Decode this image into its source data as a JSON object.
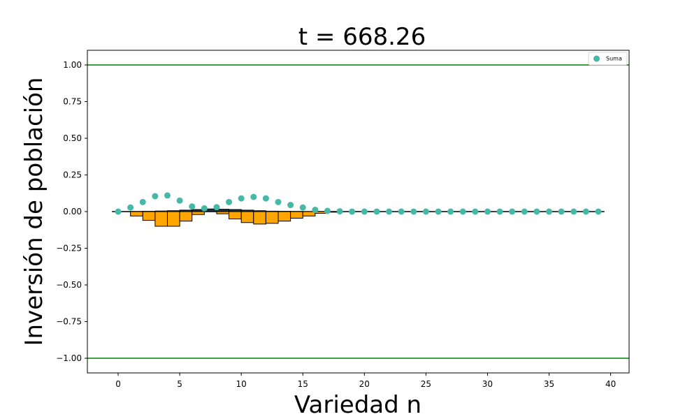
{
  "chart_data": {
    "type": "bar",
    "title": "t = 668.26",
    "xlabel": "Variedad n",
    "ylabel": "Inversión de población",
    "xlim": [
      -2.5,
      41.5
    ],
    "ylim": [
      -1.1,
      1.1
    ],
    "xticks": [
      0,
      5,
      10,
      15,
      20,
      25,
      30,
      35,
      40
    ],
    "xtick_labels": [
      "0",
      "5",
      "10",
      "15",
      "20",
      "25",
      "30",
      "35",
      "40"
    ],
    "yticks": [
      1.0,
      0.75,
      0.5,
      0.25,
      0.0,
      -0.25,
      -0.5,
      -0.75,
      -1.0
    ],
    "ytick_labels": [
      "1.00",
      "0.75",
      "0.50",
      "0.25",
      "0.00",
      "−0.25",
      "−0.50",
      "−0.75",
      "−1.00"
    ],
    "hlines": [
      {
        "y": 1.0,
        "color": "#008000"
      },
      {
        "y": -1.0,
        "color": "#008000"
      },
      {
        "y": 0.0,
        "color": "#000000",
        "xrange": [
          -0.5,
          39.5
        ]
      }
    ],
    "series": [
      {
        "kind": "bar",
        "color": "#1f2d3d",
        "x": [
          0,
          1,
          2,
          3,
          4,
          5,
          6,
          7,
          8,
          9,
          10,
          11,
          12,
          13,
          14,
          15,
          16,
          17,
          18
        ],
        "values": [
          0.0,
          0.001,
          0.002,
          0.004,
          0.006,
          0.01,
          0.014,
          0.018,
          0.016,
          0.014,
          0.01,
          0.006,
          0.003,
          0.002,
          0.001,
          0.0,
          0.0,
          0.0,
          0.0
        ]
      },
      {
        "kind": "bar",
        "color": "#ffa500",
        "x": [
          0,
          1,
          2,
          3,
          4,
          5,
          6,
          7,
          8,
          9,
          10,
          11,
          12,
          13,
          14,
          15,
          16,
          17,
          18
        ],
        "values": [
          0.0,
          -0.03,
          -0.06,
          -0.1,
          -0.1,
          -0.065,
          -0.02,
          0.0,
          -0.015,
          -0.05,
          -0.075,
          -0.085,
          -0.08,
          -0.065,
          -0.045,
          -0.03,
          -0.012,
          -0.004,
          0.0
        ]
      },
      {
        "kind": "scatter",
        "name": "Suma",
        "color": "#45b9a6",
        "x": [
          0,
          1,
          2,
          3,
          4,
          5,
          6,
          7,
          8,
          9,
          10,
          11,
          12,
          13,
          14,
          15,
          16,
          17,
          18,
          19,
          20,
          21,
          22,
          23,
          24,
          25,
          26,
          27,
          28,
          29,
          30,
          31,
          32,
          33,
          34,
          35,
          36,
          37,
          38,
          39
        ],
        "values": [
          0.0,
          0.028,
          0.065,
          0.105,
          0.11,
          0.075,
          0.035,
          0.022,
          0.03,
          0.065,
          0.09,
          0.1,
          0.09,
          0.065,
          0.045,
          0.028,
          0.012,
          0.005,
          0.002,
          0,
          0,
          0,
          0,
          0,
          0,
          0,
          0,
          0,
          0,
          0,
          0,
          0,
          0,
          0,
          0,
          0,
          0,
          0,
          0,
          0
        ]
      }
    ],
    "legend": {
      "position": "top-right",
      "entries": [
        "Suma"
      ]
    }
  }
}
